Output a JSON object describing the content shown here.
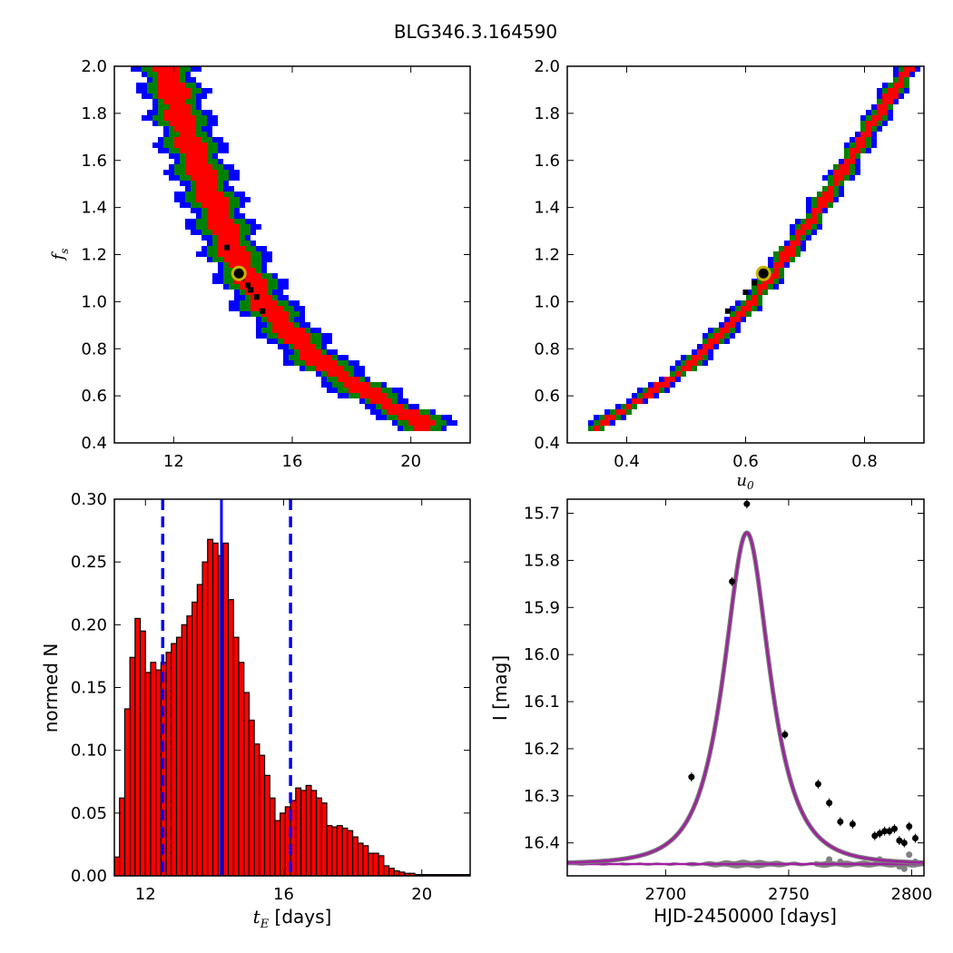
{
  "figure": {
    "title": "BLG346.3.164590"
  },
  "chart_data": [
    {
      "panel": "top-left",
      "type": "heatmap",
      "xlabel": "",
      "ylabel": "f_s",
      "ylabel_parts": {
        "base": "f",
        "sub": "s"
      },
      "xlim": [
        10,
        22
      ],
      "ylim": [
        0.4,
        2.0
      ],
      "x_ticks": [
        12,
        16,
        20
      ],
      "y_ticks": [
        0.4,
        0.6,
        0.8,
        1.0,
        1.2,
        1.4,
        1.6,
        1.8,
        2.0
      ],
      "y_tick_labels": [
        "0.4",
        "0.6",
        "0.8",
        "1.0",
        "1.2",
        "1.4",
        "1.6",
        "1.8",
        "2.0"
      ],
      "band_colors": {
        "outer": "#0000ff",
        "middle": "#008000",
        "inner": "#ff0000"
      },
      "ridge": {
        "x": [
          11.7,
          12.2,
          12.8,
          13.4,
          13.9,
          14.5,
          15.2,
          16.0,
          16.8,
          17.7,
          18.7,
          19.6,
          20.4
        ],
        "y": [
          2.0,
          1.8,
          1.6,
          1.4,
          1.25,
          1.1,
          0.97,
          0.86,
          0.76,
          0.68,
          0.6,
          0.54,
          0.49
        ]
      },
      "best_fit": {
        "x": 14.2,
        "y": 1.12
      },
      "samples": [
        {
          "x": 14.5,
          "y": 1.07
        },
        {
          "x": 13.8,
          "y": 1.23
        },
        {
          "x": 14.3,
          "y": 1.1
        },
        {
          "x": 14.8,
          "y": 1.02
        },
        {
          "x": 15.0,
          "y": 0.96
        },
        {
          "x": 14.6,
          "y": 1.05
        }
      ]
    },
    {
      "panel": "top-right",
      "type": "heatmap",
      "xlabel": "u_0",
      "xlabel_parts": {
        "base": "u",
        "sub": "0"
      },
      "ylabel": "",
      "xlim": [
        0.3,
        0.9
      ],
      "ylim": [
        0.4,
        2.0
      ],
      "x_ticks": [
        0.4,
        0.6,
        0.8
      ],
      "y_ticks": [
        0.4,
        0.6,
        0.8,
        1.0,
        1.2,
        1.4,
        1.6,
        1.8,
        2.0
      ],
      "y_tick_labels": [
        "0.4",
        "0.6",
        "0.8",
        "1.0",
        "1.2",
        "1.4",
        "1.6",
        "1.8",
        "2.0"
      ],
      "band_colors": {
        "outer": "#0000ff",
        "middle": "#008000",
        "inner": "#ff0000"
      },
      "ridge": {
        "x": [
          0.35,
          0.4,
          0.45,
          0.5,
          0.55,
          0.6,
          0.65,
          0.7,
          0.75,
          0.8,
          0.85,
          0.875
        ],
        "y": [
          0.47,
          0.55,
          0.63,
          0.72,
          0.84,
          0.97,
          1.13,
          1.31,
          1.5,
          1.7,
          1.9,
          2.0
        ]
      },
      "best_fit": {
        "x": 0.63,
        "y": 1.12
      },
      "samples": [
        {
          "x": 0.6,
          "y": 1.04
        },
        {
          "x": 0.57,
          "y": 0.96
        },
        {
          "x": 0.615,
          "y": 1.08
        }
      ]
    },
    {
      "panel": "bottom-left",
      "type": "bar",
      "xlabel": "t_E [days]",
      "xlabel_parts": {
        "base": "t",
        "sub": "E",
        "tail": " [days]"
      },
      "ylabel": "normed N",
      "xlim": [
        11.1,
        21.4
      ],
      "ylim": [
        0.0,
        0.3
      ],
      "x_ticks": [
        12,
        16,
        20
      ],
      "y_ticks": [
        0.0,
        0.05,
        0.1,
        0.15,
        0.2,
        0.25,
        0.3
      ],
      "y_tick_labels": [
        "0.00",
        "0.05",
        "0.10",
        "0.15",
        "0.20",
        "0.25",
        "0.30"
      ],
      "bar_color": "#ff0000",
      "bin_start": 11.1,
      "bin_width": 0.15,
      "values": [
        0.015,
        0.062,
        0.133,
        0.174,
        0.205,
        0.195,
        0.162,
        0.17,
        0.164,
        0.17,
        0.178,
        0.185,
        0.19,
        0.2,
        0.207,
        0.218,
        0.232,
        0.25,
        0.268,
        0.265,
        0.255,
        0.265,
        0.22,
        0.19,
        0.17,
        0.146,
        0.124,
        0.105,
        0.096,
        0.08,
        0.062,
        0.044,
        0.05,
        0.055,
        0.06,
        0.07,
        0.068,
        0.072,
        0.068,
        0.062,
        0.058,
        0.04,
        0.039,
        0.04,
        0.038,
        0.036,
        0.031,
        0.026,
        0.024,
        0.018,
        0.018,
        0.016,
        0.008,
        0.006,
        0.004,
        0.003,
        0.002,
        0.002,
        0.001,
        0.001,
        0.001,
        0.001,
        0.001,
        0.001,
        0.001,
        0.001,
        0.001,
        0.001,
        0.001
      ],
      "median": 14.2,
      "lower": 12.5,
      "upper": 16.2,
      "line_color": "#0000ff"
    },
    {
      "panel": "bottom-right",
      "type": "line",
      "xlabel": "HJD-2450000 [days]",
      "ylabel": "I [mag]",
      "xlim": [
        2660,
        2805
      ],
      "ylim": [
        16.47,
        15.67
      ],
      "x_ticks": [
        2700,
        2750,
        2800
      ],
      "y_ticks": [
        15.7,
        15.8,
        15.9,
        16.0,
        16.1,
        16.2,
        16.3,
        16.4
      ],
      "y_tick_labels": [
        "15.7",
        "15.8",
        "15.9",
        "16.0",
        "16.1",
        "16.2",
        "16.3",
        "16.4"
      ],
      "model": {
        "t0": 2733,
        "tE": 14.2,
        "u0": 0.63,
        "fs": 1.12,
        "base_mag": 16.445,
        "color": "#a020a0"
      },
      "observations": [
        {
          "x": 2710.5,
          "y": 16.26
        },
        {
          "x": 2727,
          "y": 15.845
        },
        {
          "x": 2733,
          "y": 15.68
        },
        {
          "x": 2748.5,
          "y": 16.17
        },
        {
          "x": 2762,
          "y": 16.275
        },
        {
          "x": 2766.5,
          "y": 16.315
        },
        {
          "x": 2771,
          "y": 16.355
        },
        {
          "x": 2776,
          "y": 16.36
        },
        {
          "x": 2785,
          "y": 16.385
        },
        {
          "x": 2787,
          "y": 16.38
        },
        {
          "x": 2789,
          "y": 16.375
        },
        {
          "x": 2791,
          "y": 16.375
        },
        {
          "x": 2793,
          "y": 16.37
        },
        {
          "x": 2795,
          "y": 16.395
        },
        {
          "x": 2797,
          "y": 16.4
        },
        {
          "x": 2799,
          "y": 16.365
        },
        {
          "x": 2801.5,
          "y": 16.39
        }
      ],
      "residuals": [
        {
          "x": 2766.5,
          "y": 16.435
        },
        {
          "x": 2771,
          "y": 16.44
        },
        {
          "x": 2787,
          "y": 16.435
        },
        {
          "x": 2791,
          "y": 16.44
        },
        {
          "x": 2795,
          "y": 16.45
        },
        {
          "x": 2797,
          "y": 16.455
        },
        {
          "x": 2799,
          "y": 16.425
        },
        {
          "x": 2801.5,
          "y": 16.44
        }
      ],
      "residual_color": "#808080"
    }
  ]
}
